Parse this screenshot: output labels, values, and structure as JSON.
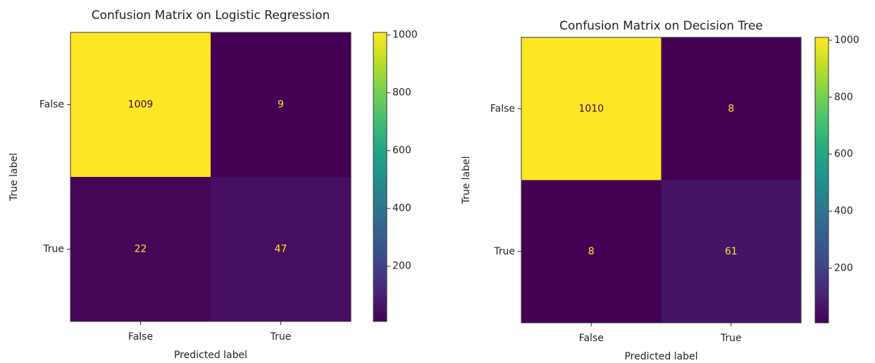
{
  "chart_data": [
    {
      "type": "heatmap",
      "title": "Confusion Matrix on Logistic Regression",
      "xlabel": "Predicted label",
      "ylabel": "True label",
      "x": [
        "False",
        "True"
      ],
      "y": [
        "False",
        "True"
      ],
      "values": [
        [
          1009,
          9
        ],
        [
          22,
          47
        ]
      ],
      "colormap": "viridis",
      "clim": [
        9,
        1009
      ],
      "cticks": [
        200,
        400,
        600,
        800,
        1000
      ]
    },
    {
      "type": "heatmap",
      "title": "Confusion Matrix on Decision Tree",
      "xlabel": "Predicted label",
      "ylabel": "True label",
      "x": [
        "False",
        "True"
      ],
      "y": [
        "False",
        "True"
      ],
      "values": [
        [
          1010,
          8
        ],
        [
          8,
          61
        ]
      ],
      "colormap": "viridis",
      "clim": [
        8,
        1010
      ],
      "cticks": [
        200,
        400,
        600,
        800,
        1000
      ]
    }
  ]
}
